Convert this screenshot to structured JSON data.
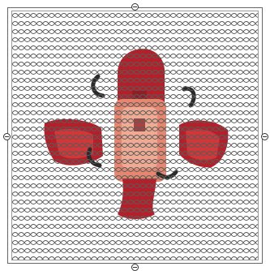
{
  "canvas": {
    "background": "#ffffff",
    "mesh_color": "#5a5a5a",
    "figure_colors": [
      "#b3202a",
      "#d23a3a",
      "#8e1f25",
      "#e58670",
      "#f1b09a",
      "#2a2a2a"
    ]
  },
  "handles": [
    "top-resize-handle",
    "bottom-resize-handle",
    "left-resize-handle",
    "right-resize-handle"
  ]
}
